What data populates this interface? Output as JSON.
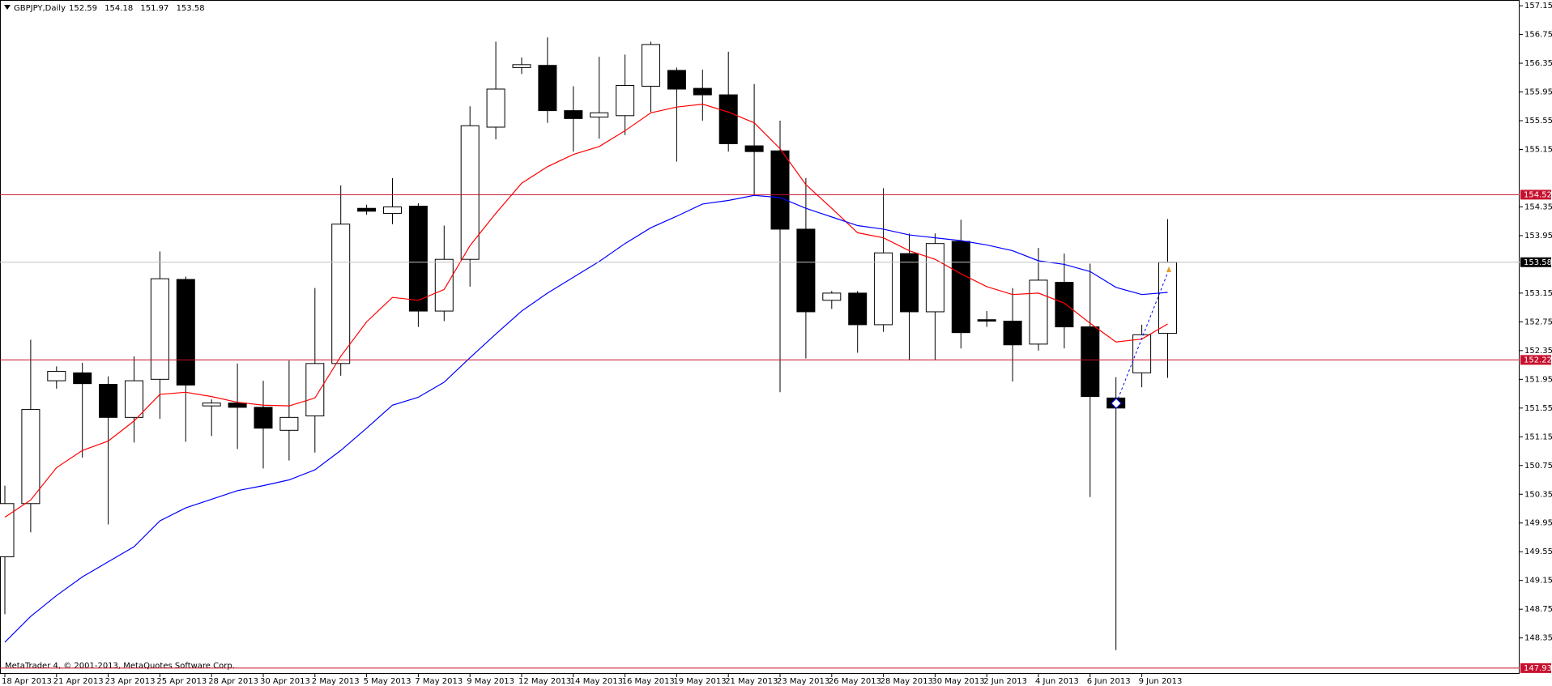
{
  "chart_data": {
    "type": "candlestick",
    "title": "GBPJPY,Daily",
    "footer": "MetaTrader 4, © 2001-2013, MetaQuotes Software Corp.",
    "categories": [
      "18 Apr 2013",
      null,
      "21 Apr 2013",
      null,
      "23 Apr 2013",
      null,
      "25 Apr 2013",
      null,
      "28 Apr 2013",
      null,
      "30 Apr 2013",
      null,
      "2 May 2013",
      null,
      "5 May 2013",
      null,
      "7 May 2013",
      null,
      "9 May 2013",
      null,
      "12 May 2013",
      null,
      "14 May 2013",
      null,
      "16 May 2013",
      null,
      "19 May 2013",
      null,
      "21 May 2013",
      null,
      "23 May 2013",
      null,
      "26 May 2013",
      null,
      "28 May 2013",
      null,
      "30 May 2013",
      null,
      "2 Jun 2013",
      null,
      "4 Jun 2013",
      null,
      "6 Jun 2013",
      null,
      "9 Jun 2013",
      null
    ],
    "open": [
      149.48,
      150.22,
      151.93,
      152.04,
      151.88,
      151.42,
      151.95,
      153.34,
      151.58,
      151.62,
      151.56,
      151.24,
      151.44,
      152.17,
      154.33,
      154.26,
      154.36,
      152.9,
      153.62,
      155.46,
      156.29,
      156.32,
      155.69,
      155.6,
      155.62,
      156.03,
      156.25,
      156.0,
      155.91,
      155.2,
      155.13,
      154.04,
      153.05,
      153.15,
      152.71,
      153.7,
      152.89,
      153.87,
      152.78,
      152.76,
      152.44,
      153.3,
      152.68,
      151.69,
      152.04,
      152.59
    ],
    "high": [
      150.47,
      152.5,
      152.13,
      152.18,
      151.99,
      152.27,
      153.73,
      153.38,
      151.67,
      152.17,
      151.93,
      152.21,
      153.22,
      154.65,
      154.38,
      154.75,
      154.4,
      154.09,
      155.75,
      156.65,
      156.43,
      156.71,
      156.03,
      156.44,
      156.47,
      156.65,
      156.29,
      156.26,
      156.51,
      156.06,
      155.55,
      154.75,
      153.18,
      153.18,
      154.61,
      153.98,
      153.98,
      154.17,
      152.9,
      153.22,
      153.78,
      153.7,
      153.56,
      151.98,
      152.71,
      154.18
    ],
    "low": [
      148.68,
      149.82,
      151.82,
      150.86,
      149.93,
      151.07,
      151.4,
      151.08,
      151.16,
      150.98,
      150.71,
      150.82,
      150.93,
      152.0,
      154.24,
      154.11,
      152.68,
      152.76,
      153.24,
      155.29,
      156.2,
      155.52,
      155.12,
      155.3,
      155.35,
      155.67,
      154.98,
      155.55,
      155.12,
      154.51,
      151.77,
      152.24,
      152.93,
      152.32,
      152.61,
      152.22,
      152.22,
      152.38,
      152.68,
      151.92,
      152.35,
      152.38,
      150.31,
      148.18,
      151.84,
      151.97
    ],
    "close": [
      150.22,
      151.53,
      152.06,
      151.89,
      151.42,
      151.93,
      153.35,
      151.87,
      151.62,
      151.56,
      151.27,
      151.42,
      152.17,
      154.11,
      154.29,
      154.35,
      152.9,
      153.62,
      155.48,
      155.99,
      156.33,
      155.69,
      155.58,
      155.66,
      156.04,
      156.61,
      155.99,
      155.91,
      155.23,
      155.12,
      154.04,
      152.89,
      153.15,
      152.71,
      153.71,
      152.89,
      153.84,
      152.6,
      152.76,
      152.43,
      153.33,
      152.68,
      151.71,
      151.55,
      152.57,
      153.58
    ],
    "bull_color": "#ffffff",
    "bear_color": "#000000",
    "overlays": [
      {
        "color": "#ff0000",
        "values": [
          150.03,
          150.27,
          150.72,
          150.96,
          151.09,
          151.37,
          151.74,
          151.77,
          151.71,
          151.63,
          151.59,
          151.58,
          151.69,
          152.27,
          152.75,
          153.09,
          153.05,
          153.2,
          153.81,
          154.26,
          154.68,
          154.91,
          155.08,
          155.19,
          155.41,
          155.66,
          155.74,
          155.78,
          155.67,
          155.52,
          155.16,
          154.66,
          154.33,
          153.99,
          153.92,
          153.74,
          153.62,
          153.42,
          153.24,
          153.13,
          153.15,
          153.01,
          152.73,
          152.47,
          152.51,
          152.72
        ]
      },
      {
        "color": "#0000ff",
        "values": [
          148.29,
          148.65,
          148.94,
          149.2,
          149.41,
          149.62,
          149.98,
          150.16,
          150.28,
          150.4,
          150.47,
          150.55,
          150.69,
          150.96,
          151.27,
          151.59,
          151.7,
          151.91,
          152.25,
          152.58,
          152.9,
          153.15,
          153.37,
          153.59,
          153.84,
          154.06,
          154.22,
          154.39,
          154.44,
          154.51,
          154.48,
          154.33,
          154.21,
          154.09,
          154.04,
          153.96,
          153.92,
          153.88,
          153.82,
          153.74,
          153.6,
          153.55,
          153.45,
          153.23,
          153.13,
          153.16
        ]
      }
    ],
    "levels": [
      154.52,
      152.22,
      147.93
    ],
    "level_color": "#c8102e",
    "current_price": 153.58,
    "current_color": "#c0c0c0",
    "ylim": [
      147.85,
      157.23
    ],
    "yticks": [
      157.15,
      156.75,
      156.35,
      155.95,
      155.55,
      155.15,
      154.35,
      153.95,
      153.15,
      152.75,
      152.35,
      151.95,
      151.55,
      151.15,
      150.75,
      150.35,
      149.95,
      149.55,
      149.15,
      148.75,
      148.35
    ],
    "grid": false
  }
}
